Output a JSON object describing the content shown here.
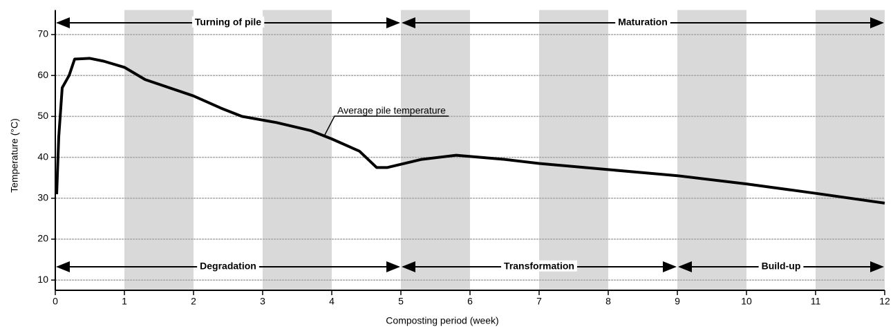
{
  "chart_data": {
    "type": "line",
    "x_label": "Composting period (week)",
    "y_label": "Temperature (°C)",
    "x": [
      0.02,
      0.05,
      0.1,
      0.2,
      0.28,
      0.5,
      0.7,
      1,
      1.3,
      2,
      2.4,
      2.7,
      3.2,
      3.7,
      4,
      4.4,
      4.65,
      4.8,
      5.3,
      5.8,
      6.5,
      7,
      8,
      9,
      10,
      11,
      12
    ],
    "series": [
      {
        "name": "Average pile temperature",
        "color": "#000000",
        "values": [
          31,
          45,
          57,
          60,
          64,
          64.2,
          63.5,
          62,
          59,
          55,
          52,
          50,
          48.5,
          46.5,
          44.5,
          41.5,
          37.5,
          37.5,
          39.5,
          40.5,
          39.5,
          38.5,
          37,
          35.5,
          33.5,
          31.2,
          28.8
        ]
      }
    ],
    "xlim": [
      0,
      12
    ],
    "xticks": [
      0,
      1,
      2,
      3,
      4,
      5,
      6,
      7,
      8,
      9,
      10,
      11,
      12
    ],
    "ylim": [
      7.5,
      76
    ],
    "yticks": [
      10,
      20,
      30,
      40,
      50,
      60,
      70
    ],
    "grid": true,
    "shaded_weeks": [
      [
        1,
        2
      ],
      [
        3,
        4
      ],
      [
        5,
        6
      ],
      [
        7,
        8
      ],
      [
        9,
        10
      ],
      [
        11,
        12
      ]
    ],
    "shade_color": "#d9d9d9",
    "top_phases": [
      {
        "label": "Turning of pile",
        "start": 0,
        "end": 5
      },
      {
        "label": "Maturation",
        "start": 5,
        "end": 12
      }
    ],
    "bottom_phases": [
      {
        "label": "Degradation",
        "start": 0,
        "end": 5
      },
      {
        "label": "Transformation",
        "start": 5,
        "end": 9
      },
      {
        "label": "Build-up",
        "start": 9,
        "end": 12
      }
    ]
  }
}
